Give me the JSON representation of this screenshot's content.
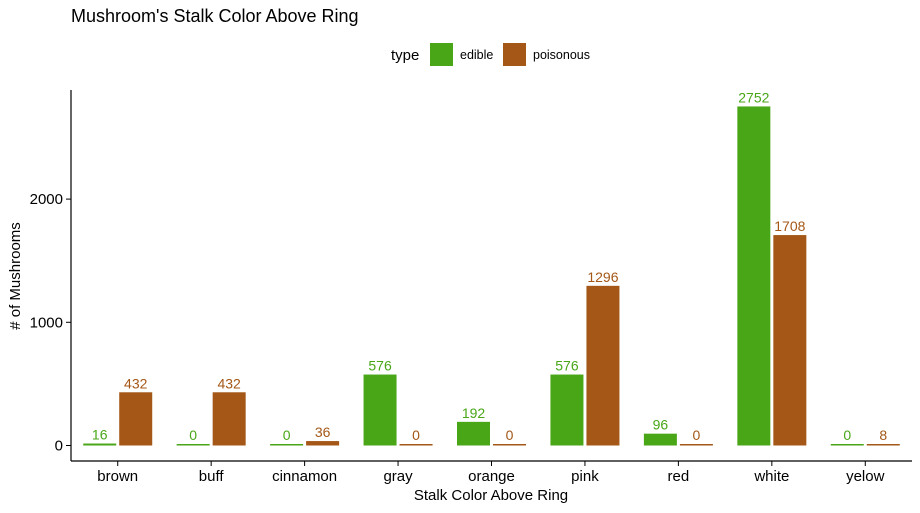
{
  "chart_data": {
    "type": "bar",
    "title": "Mushroom's Stalk Color Above Ring",
    "xlabel": "Stalk Color Above Ring",
    "ylabel": "# of Mushrooms",
    "categories": [
      "brown",
      "buff",
      "cinnamon",
      "gray",
      "orange",
      "pink",
      "red",
      "white",
      "yelow"
    ],
    "series": [
      {
        "name": "edible",
        "color": "#49A617",
        "values": [
          16,
          0,
          0,
          576,
          192,
          576,
          96,
          2752,
          0
        ]
      },
      {
        "name": "poisonous",
        "color": "#A45716",
        "values": [
          432,
          432,
          36,
          0,
          0,
          1296,
          0,
          1708,
          8
        ]
      }
    ],
    "ylim": [
      0,
      2800
    ],
    "yticks": [
      0,
      1000,
      2000
    ],
    "legend": {
      "title": "type",
      "position": "top"
    },
    "grid": false
  }
}
